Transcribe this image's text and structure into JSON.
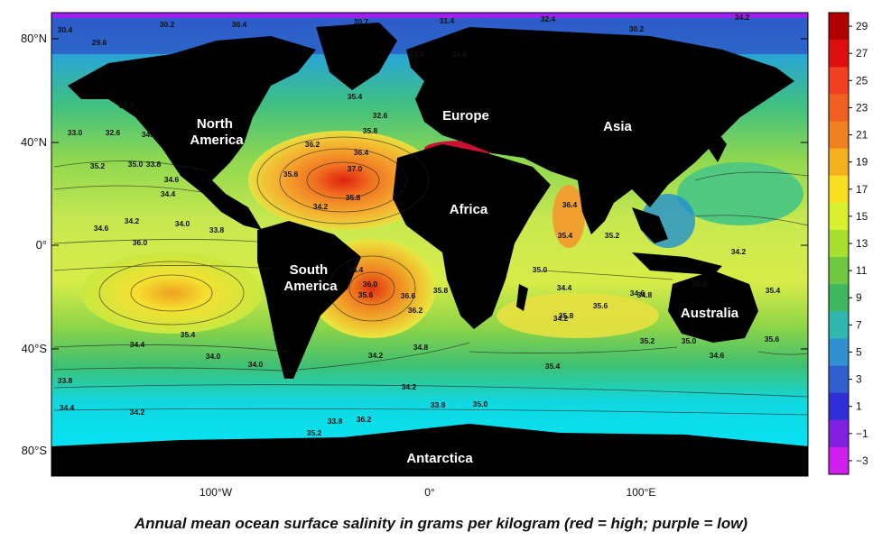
{
  "map": {
    "latitude_labels": [
      "80°N",
      "40°N",
      "0°",
      "40°S",
      "80°S"
    ],
    "longitude_labels": [
      "100°W",
      "0°",
      "100°E"
    ],
    "continent_labels": [
      "North America",
      "Europe",
      "Asia",
      "Africa",
      "South America",
      "Australia",
      "Antarctica"
    ],
    "contour_labels": [
      "30.4",
      "29.6",
      "30.2",
      "30.4",
      "30.7",
      "31.4",
      "32.4",
      "30.2",
      "34.2",
      "35.0",
      "34.8",
      "35.4",
      "32.6",
      "33.4",
      "33.0",
      "32.6",
      "34.0",
      "35.8",
      "36.2",
      "35.2",
      "35.0",
      "34.6",
      "33.8",
      "36.4",
      "37.0",
      "35.6",
      "35.8",
      "34.4",
      "34.2",
      "36.4",
      "34.2",
      "34.6",
      "34.0",
      "33.8",
      "36.0",
      "35.4",
      "35.2",
      "35.0",
      "34.2",
      "35.6",
      "36.4",
      "36.0",
      "35.8",
      "36.2",
      "34.4",
      "36.6",
      "35.8",
      "34.8",
      "35.0",
      "35.4",
      "35.6",
      "34.6",
      "35.0",
      "35.2",
      "35.4",
      "34.0",
      "34.4",
      "34.2",
      "34.8",
      "34.6",
      "35.6",
      "34.2",
      "33.8",
      "34.0",
      "34.2",
      "33.8",
      "34.4",
      "34.2",
      "33.8",
      "35.0",
      "36.2",
      "35.2",
      "35.4"
    ],
    "colors": {
      "land": "#000000",
      "low": "#a020f0",
      "cyan": "#00e5ff",
      "green": "#3cc060",
      "yellow": "#f0f030",
      "orange": "#f08020",
      "red": "#e01010"
    }
  },
  "colorbar": {
    "tick_labels": [
      "29",
      "27",
      "25",
      "23",
      "21",
      "19",
      "17",
      "15",
      "13",
      "11",
      "9",
      "7",
      "5",
      "3",
      "1",
      "−1",
      "−3"
    ],
    "colors": [
      "#b00000",
      "#e01010",
      "#f04020",
      "#f06020",
      "#f08020",
      "#f5b020",
      "#f8e020",
      "#d8f030",
      "#a8e030",
      "#70c840",
      "#40b860",
      "#30b8b0",
      "#3090d0",
      "#3060d0",
      "#3030d8",
      "#8020e0",
      "#d020f0"
    ]
  },
  "caption": "Annual mean ocean surface salinity in grams per kilogram (red = high; purple = low)"
}
